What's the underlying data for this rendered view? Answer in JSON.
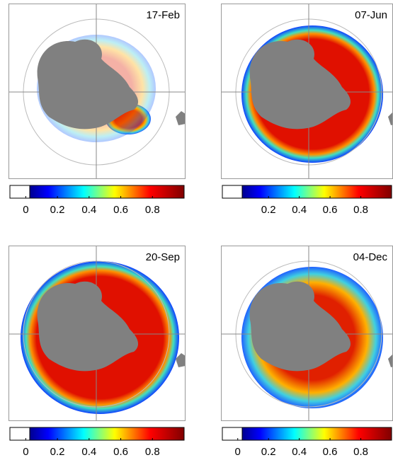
{
  "panels": [
    {
      "title": "17-Feb",
      "colorbar": {
        "lim": [
          -0.1,
          1
        ],
        "ticks": [
          0,
          0.2,
          0.4,
          0.6,
          0.8
        ]
      }
    },
    {
      "title": "07-Jun",
      "colorbar": {
        "lim": [
          -0.1,
          1
        ],
        "ticks": [
          0.2,
          0.4,
          0.6,
          0.8
        ]
      }
    },
    {
      "title": "20-Sep",
      "colorbar": {
        "lim": [
          -0.1,
          1
        ],
        "ticks": [
          0,
          0.2,
          0.4,
          0.6,
          0.8
        ]
      }
    },
    {
      "title": "04-Dec",
      "colorbar": {
        "lim": [
          -0.1,
          1
        ],
        "ticks": [
          0,
          0.2,
          0.4,
          0.6,
          0.8
        ]
      }
    }
  ]
}
